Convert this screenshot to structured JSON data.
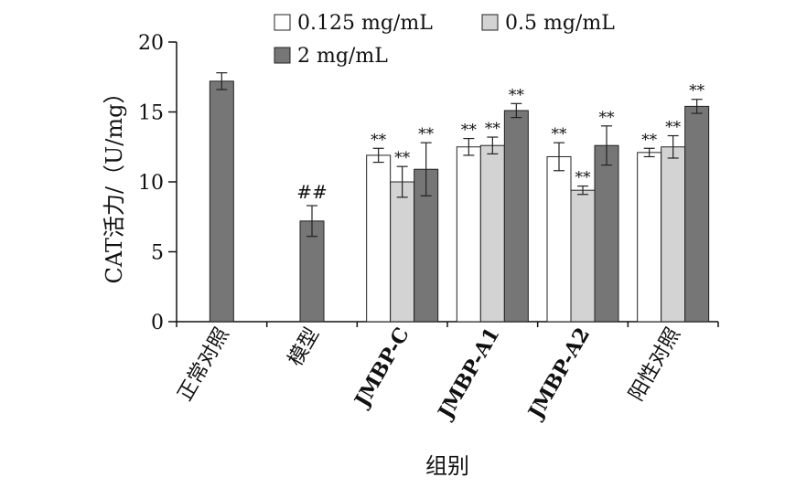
{
  "chart_data": {
    "type": "bar",
    "xlabel": "组别",
    "ylabel": "CAT活力/（U/mg）",
    "ylim": [
      0,
      20
    ],
    "yticks": [
      0,
      5,
      10,
      15,
      20
    ],
    "categories": [
      "正常对照",
      "模型",
      "JMBP-C",
      "JMBP-A1",
      "JMBP-A2",
      "阳性对照"
    ],
    "legend_position": "top",
    "series": [
      {
        "name": "0.125 mg/mL",
        "color": "#ffffff",
        "values": [
          null,
          null,
          11.9,
          12.5,
          11.8,
          12.1
        ],
        "errors": [
          null,
          null,
          0.5,
          0.6,
          1.0,
          0.3
        ],
        "labels": [
          "",
          "",
          "**",
          "**",
          "**",
          "**"
        ]
      },
      {
        "name": "0.5 mg/mL",
        "color": "#d3d3d3",
        "values": [
          null,
          null,
          10.0,
          12.6,
          9.4,
          12.5
        ],
        "errors": [
          null,
          null,
          1.1,
          0.6,
          0.3,
          0.8
        ],
        "labels": [
          "",
          "",
          "**",
          "**",
          "**",
          "**"
        ]
      },
      {
        "name": "2 mg/mL",
        "color": "#767676",
        "values": [
          17.2,
          7.2,
          10.9,
          15.1,
          12.6,
          15.4
        ],
        "errors": [
          0.6,
          1.1,
          1.9,
          0.5,
          1.4,
          0.5
        ],
        "labels": [
          "",
          "##",
          "**",
          "**",
          "**",
          "**"
        ]
      }
    ]
  }
}
